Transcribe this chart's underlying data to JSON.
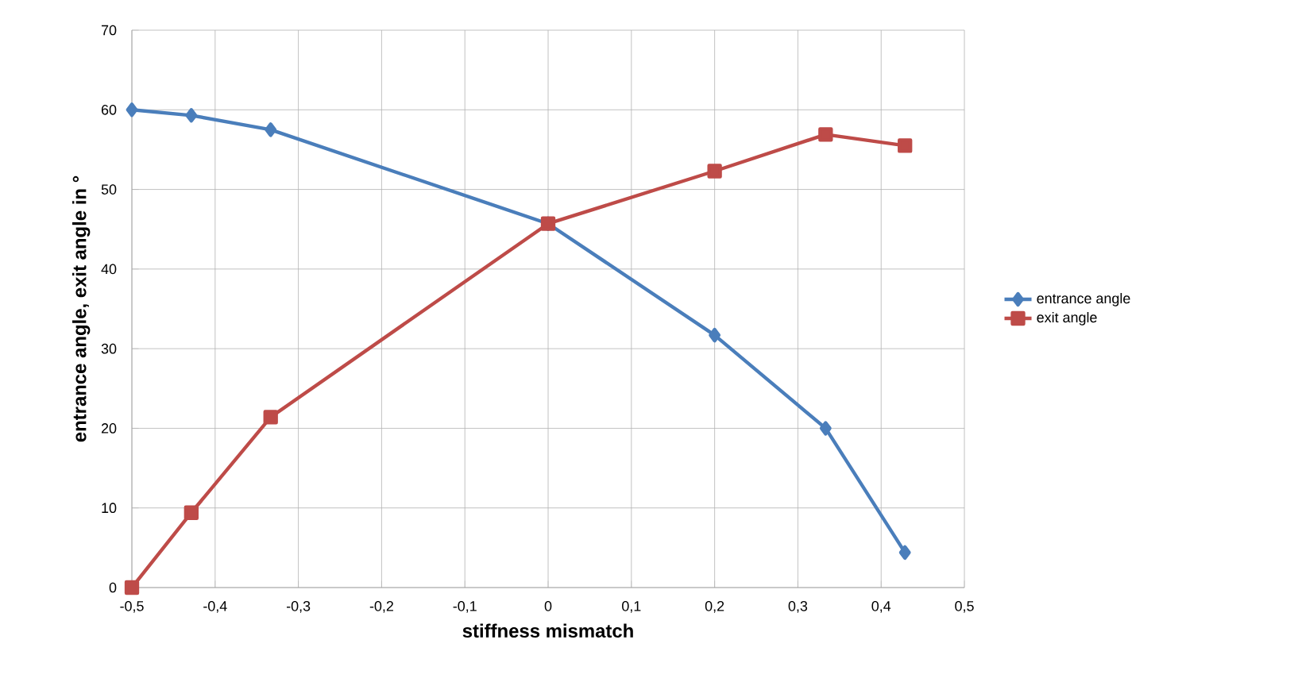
{
  "chart_data": {
    "type": "line",
    "xlabel": "stiffness mismatch",
    "ylabel": "entrance angle, exit angle in °",
    "x": [
      -0.5,
      -0.4286,
      -0.3333,
      0,
      0.2,
      0.3333,
      0.4286
    ],
    "series": [
      {
        "name": "entrance angle",
        "color": "#4a7ebb",
        "marker": "diamond",
        "values": [
          60,
          59.3,
          57.5,
          45.7,
          31.7,
          20,
          4.4
        ]
      },
      {
        "name": "exit angle",
        "color": "#be4b48",
        "marker": "square",
        "values": [
          0,
          9.4,
          21.4,
          45.7,
          52.3,
          56.9,
          55.5
        ]
      }
    ],
    "xlim": [
      -0.5,
      0.5
    ],
    "xticks": [
      {
        "value": -0.5,
        "label": "-0,5"
      },
      {
        "value": -0.4,
        "label": "-0,4"
      },
      {
        "value": -0.3,
        "label": "-0,3"
      },
      {
        "value": -0.2,
        "label": "-0,2"
      },
      {
        "value": -0.1,
        "label": "-0,1"
      },
      0,
      {
        "value": 0.1,
        "label": "0,1"
      },
      {
        "value": 0.2,
        "label": "0,2"
      },
      {
        "value": 0.3,
        "label": "0,3"
      },
      {
        "value": 0.4,
        "label": "0,4"
      },
      {
        "value": 0.5,
        "label": "0,5"
      }
    ],
    "ylim": [
      0,
      70
    ],
    "yticks": [
      0,
      10,
      20,
      30,
      40,
      50,
      60,
      70
    ],
    "grid": true,
    "legend": "right",
    "line_style": "solid"
  }
}
